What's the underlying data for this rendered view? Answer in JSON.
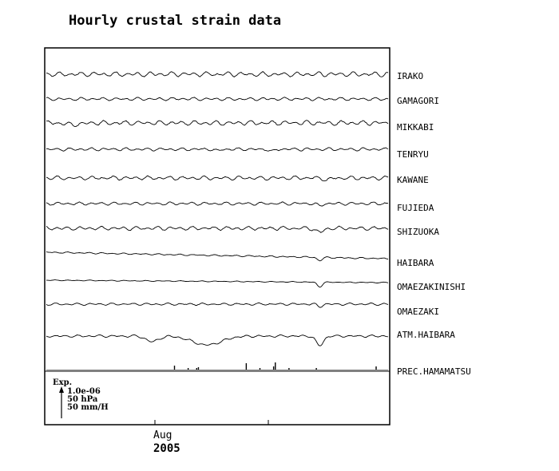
{
  "chart_data": {
    "type": "line",
    "title": "Hourly crustal strain data",
    "x_tick_labels": [
      "Aug",
      ""
    ],
    "x_year_label": "2005",
    "scale_legend": {
      "arrow_label": "Exp.",
      "lines": [
        "1.0e-06",
        "50 hPa",
        "50 mm/H"
      ]
    },
    "series": [
      {
        "name": "IRAKO",
        "kind": "noise",
        "amp": 3,
        "features": []
      },
      {
        "name": "GAMAGORI",
        "kind": "noise",
        "amp": 2,
        "features": []
      },
      {
        "name": "MIKKABI",
        "kind": "noise",
        "amp": 3,
        "features": [
          {
            "t": 0.08,
            "w": 0.03,
            "d": 2
          }
        ]
      },
      {
        "name": "TENRYU",
        "kind": "noise",
        "amp": 2,
        "features": [
          {
            "t": 0.5,
            "w": 0.01,
            "d": 2
          },
          {
            "t": 0.66,
            "w": 0.01,
            "d": 3
          }
        ]
      },
      {
        "name": "KAWANE",
        "kind": "noise",
        "amp": 2.5,
        "features": [
          {
            "t": 0.82,
            "w": 0.01,
            "d": 3
          }
        ]
      },
      {
        "name": "FUJIEDA",
        "kind": "noise",
        "amp": 2,
        "features": [
          {
            "t": 0.8,
            "w": 0.01,
            "d": 3
          }
        ]
      },
      {
        "name": "SHIZUOKA",
        "kind": "noise",
        "amp": 2.5,
        "features": [
          {
            "t": 0.8,
            "w": 0.015,
            "d": 5
          }
        ]
      },
      {
        "name": "HAIBARA",
        "kind": "drift",
        "amp": 1,
        "drift": 8,
        "features": [
          {
            "t": 0.8,
            "w": 0.01,
            "d": 4
          }
        ]
      },
      {
        "name": "OMAEZAKINISHI",
        "kind": "drift",
        "amp": 0.6,
        "drift": 3,
        "features": [
          {
            "t": 0.8,
            "w": 0.01,
            "d": 6
          }
        ]
      },
      {
        "name": "OMAEZAKI",
        "kind": "noise",
        "amp": 1.5,
        "features": [
          {
            "t": 0.8,
            "w": 0.01,
            "d": 3
          }
        ]
      },
      {
        "name": "ATM.HAIBARA",
        "kind": "noise",
        "amp": 1.5,
        "features": [
          {
            "t": 0.31,
            "w": 0.025,
            "d": 7
          },
          {
            "t": 0.47,
            "w": 0.06,
            "d": 11
          },
          {
            "t": 0.8,
            "w": 0.015,
            "d": 12
          }
        ]
      },
      {
        "name": "PREC.HAMAMATSU",
        "kind": "spikes",
        "spikes": [
          {
            "t": 0.375,
            "h": 5
          },
          {
            "t": 0.415,
            "h": 2
          },
          {
            "t": 0.445,
            "h": 3
          },
          {
            "t": 0.44,
            "h": 2
          },
          {
            "t": 0.585,
            "h": 8
          },
          {
            "t": 0.625,
            "h": 2
          },
          {
            "t": 0.67,
            "h": 9
          },
          {
            "t": 0.665,
            "h": 4
          },
          {
            "t": 0.71,
            "h": 2
          },
          {
            "t": 0.79,
            "h": 2
          },
          {
            "t": 0.965,
            "h": 4
          }
        ]
      }
    ]
  }
}
